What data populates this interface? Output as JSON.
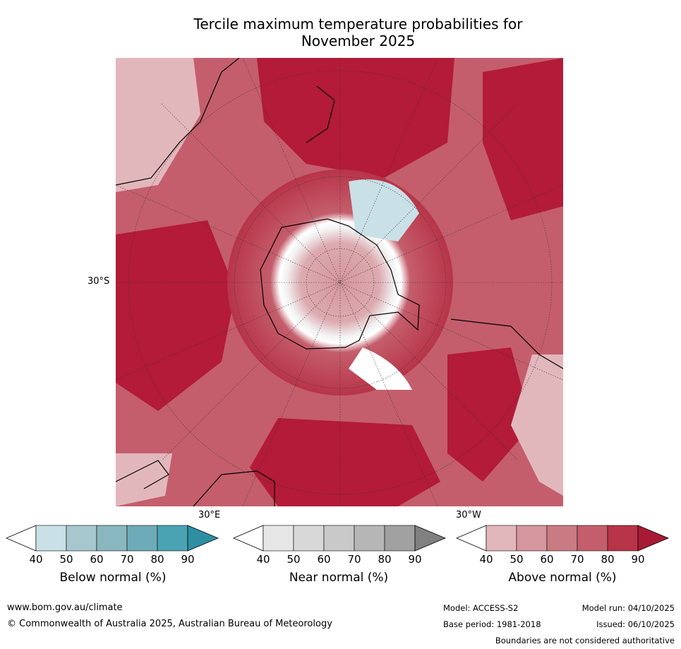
{
  "title": {
    "line1": "Tercile maximum temperature probabilities for",
    "line2": "November 2025"
  },
  "axis_labels": {
    "lat": "30°S",
    "lon_east": "30°E",
    "lon_west": "30°W"
  },
  "legends": [
    {
      "label": "Below normal (%)",
      "ticks": [
        "40",
        "50",
        "60",
        "70",
        "80",
        "90"
      ],
      "colors": [
        "#ffffff",
        "#c8e0e6",
        "#a6c7cd",
        "#8ab7bf",
        "#6eabb8",
        "#4aa3b3",
        "#2e8fa3"
      ]
    },
    {
      "label": "Near normal (%)",
      "ticks": [
        "40",
        "50",
        "60",
        "70",
        "80",
        "90"
      ],
      "colors": [
        "#ffffff",
        "#e6e6e6",
        "#d8d8d8",
        "#c9c9c9",
        "#b6b6b6",
        "#a1a1a1",
        "#808080"
      ]
    },
    {
      "label": "Above normal (%)",
      "ticks": [
        "40",
        "50",
        "60",
        "70",
        "80",
        "90"
      ],
      "colors": [
        "#ffffff",
        "#e2b7bc",
        "#d6969e",
        "#ca7a83",
        "#c45e6c",
        "#b83448",
        "#a81935"
      ]
    }
  ],
  "footer": {
    "url": "www.bom.gov.au/climate",
    "copyright": "© Commonwealth of Australia 2025, Australian Bureau of Meteorology",
    "model": "Model: ACCESS-S2",
    "base_period": "Base period: 1981-2018",
    "model_run": "Model run: 04/10/2025",
    "issued": "Issued: 06/10/2025",
    "disclaimer": "Boundaries are not considered authoritative"
  }
}
